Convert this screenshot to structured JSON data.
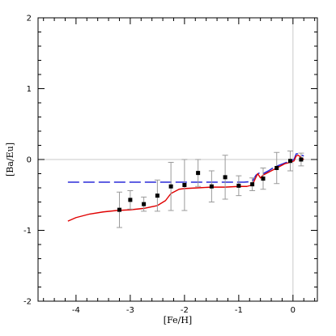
{
  "chart_data": {
    "type": "scatter",
    "xlabel": "[Fe/H]",
    "ylabel": "[Ba/Eu]",
    "xlim": [
      -4.7,
      0.45
    ],
    "ylim": [
      -2,
      2
    ],
    "x_ticks": [
      -4,
      -3,
      -2,
      -1,
      0
    ],
    "y_ticks": [
      -2,
      -1,
      0,
      1,
      2
    ],
    "reference_lines": {
      "y": 0,
      "x": 0
    },
    "colors": {
      "red_curve": "#e00000",
      "blue_curve": "#2b2bd9",
      "points": "#000000",
      "errorbars": "#9a9a9a",
      "reference": "#c8c8c8"
    },
    "points": [
      {
        "x": -3.2,
        "y": -0.71,
        "yerr": 0.25
      },
      {
        "x": -3.0,
        "y": -0.57,
        "yerr": 0.13
      },
      {
        "x": -2.75,
        "y": -0.63,
        "yerr": 0.1
      },
      {
        "x": -2.5,
        "y": -0.51,
        "yerr": 0.22
      },
      {
        "x": -2.25,
        "y": -0.38,
        "yerr": 0.34
      },
      {
        "x": -2.0,
        "y": -0.36,
        "yerr": 0.36
      },
      {
        "x": -1.75,
        "y": -0.19,
        "yerr": 0.19
      },
      {
        "x": -1.5,
        "y": -0.38,
        "yerr": 0.22
      },
      {
        "x": -1.25,
        "y": -0.25,
        "yerr": 0.31
      },
      {
        "x": -1.0,
        "y": -0.37,
        "yerr": 0.14
      },
      {
        "x": -0.75,
        "y": -0.35,
        "yerr": 0.09
      },
      {
        "x": -0.55,
        "y": -0.27,
        "yerr": 0.15
      },
      {
        "x": -0.3,
        "y": -0.12,
        "yerr": 0.22
      },
      {
        "x": -0.05,
        "y": -0.02,
        "yerr": 0.14
      },
      {
        "x": 0.15,
        "y": 0.0,
        "yerr": 0.09
      }
    ],
    "series": [
      {
        "style": "dashed",
        "color": "#2b2bd9",
        "x": [
          -4.15,
          -3.0,
          -2.0,
          -1.0,
          -0.9,
          -0.75,
          -0.68,
          -0.6,
          -0.55,
          -0.45,
          -0.35,
          -0.25,
          -0.15,
          -0.05,
          0.02,
          0.06,
          0.1,
          0.16,
          0.2
        ],
        "y": [
          -0.32,
          -0.32,
          -0.32,
          -0.32,
          -0.32,
          -0.31,
          -0.22,
          -0.18,
          -0.2,
          -0.16,
          -0.11,
          -0.08,
          -0.05,
          -0.02,
          0.0,
          0.08,
          0.08,
          0.06,
          0.05
        ]
      },
      {
        "style": "solid",
        "color": "#e00000",
        "x": [
          -4.15,
          -4.0,
          -3.75,
          -3.5,
          -3.25,
          -3.0,
          -2.75,
          -2.5,
          -2.35,
          -2.25,
          -2.1,
          -2.0,
          -1.75,
          -1.5,
          -1.25,
          -1.0,
          -0.85,
          -0.75,
          -0.7,
          -0.65,
          -0.6,
          -0.55,
          -0.45,
          -0.35,
          -0.25,
          -0.15,
          -0.05,
          0.02,
          0.06,
          0.1,
          0.16,
          0.2
        ],
        "y": [
          -0.87,
          -0.82,
          -0.77,
          -0.74,
          -0.72,
          -0.71,
          -0.69,
          -0.65,
          -0.58,
          -0.48,
          -0.42,
          -0.41,
          -0.4,
          -0.39,
          -0.39,
          -0.38,
          -0.38,
          -0.36,
          -0.28,
          -0.2,
          -0.26,
          -0.22,
          -0.18,
          -0.14,
          -0.1,
          -0.06,
          -0.04,
          -0.02,
          0.05,
          0.06,
          0.02,
          0.0
        ]
      }
    ]
  }
}
